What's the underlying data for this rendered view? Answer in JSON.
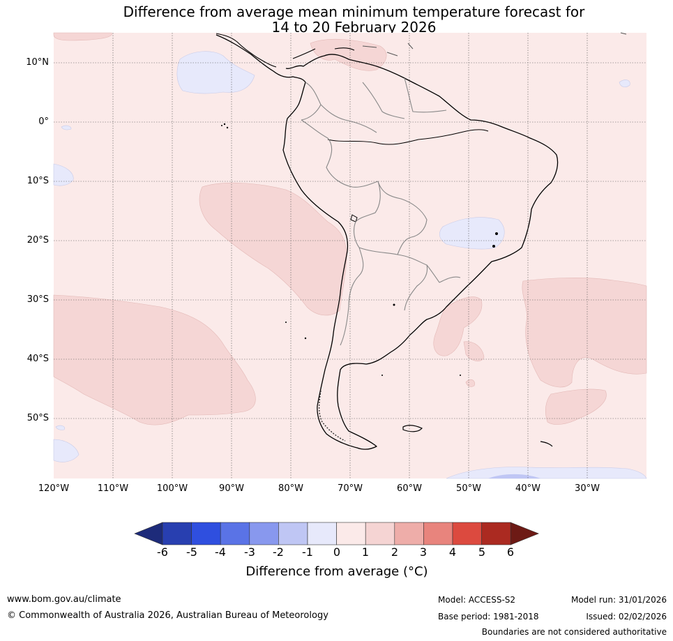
{
  "title": {
    "line1": "Difference from average mean minimum temperature forecast for",
    "line2": "14 to 20 February 2026"
  },
  "map": {
    "region": "South America",
    "lat_labels": [
      "10°N",
      "0°",
      "10°S",
      "20°S",
      "30°S",
      "40°S",
      "50°S"
    ],
    "lon_labels": [
      "120°W",
      "110°W",
      "100°W",
      "90°W",
      "80°W",
      "70°W",
      "60°W",
      "50°W",
      "40°W",
      "30°W"
    ],
    "anomaly_regions": [
      {
        "area": "Background ocean and land",
        "category": "0 to 1"
      },
      {
        "area": "Eastern Pacific off Peru and Chile",
        "category": "1 to 2"
      },
      {
        "area": "Southern Pacific",
        "category": "1 to 2"
      },
      {
        "area": "South Atlantic",
        "category": "1 to 2"
      },
      {
        "area": "Caribbean north of Venezuela",
        "category": "1 to 2"
      },
      {
        "area": "Eastern Pacific off Central America",
        "category": "-1 to 0"
      },
      {
        "area": "South-eastern Brazil",
        "category": "-1 to 0"
      }
    ]
  },
  "colorbar": {
    "ticks": [
      "-6",
      "-5",
      "-4",
      "-3",
      "-2",
      "-1",
      "0",
      "1",
      "2",
      "3",
      "4",
      "5",
      "6"
    ],
    "colors": [
      "#1d2b7a",
      "#283fb0",
      "#2f4fdf",
      "#5a73e6",
      "#8898ee",
      "#bfc6f4",
      "#e7e9fb",
      "#fbeae9",
      "#f5d4d3",
      "#eeada9",
      "#e8847d",
      "#dc4a3f",
      "#ab2a21",
      "#6d1a15"
    ],
    "label": "Difference from average (°C)"
  },
  "footer": {
    "website": "www.bom.gov.au/climate",
    "copyright": "© Commonwealth of Australia 2026, Australian Bureau of Meteorology",
    "model": "Model: ACCESS-S2",
    "base_period": "Base period: 1981-2018",
    "model_run": "Model run: 31/01/2026",
    "issued": "Issued: 02/02/2026",
    "disclaimer": "Boundaries are not considered authoritative"
  }
}
